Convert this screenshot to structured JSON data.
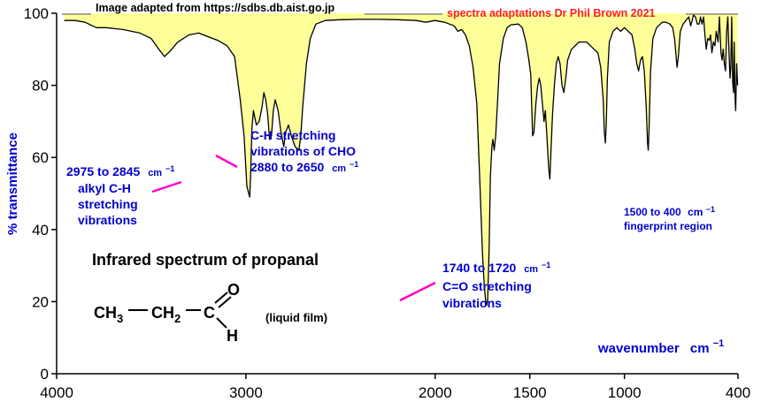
{
  "credit": {
    "source": "Image adapted from https://sdbs.db.aist.go.jp",
    "adaptation": "spectra adaptations Dr Phil Brown 2021"
  },
  "title": "Infrared spectrum of propanal",
  "sample_note": "(liquid film)",
  "molecule": {
    "ch3": "CH",
    "ch3_sub": "3",
    "ch2": "CH",
    "ch2_sub": "2",
    "c": "C",
    "o": "O",
    "h": "H"
  },
  "annotations": {
    "alkyl_range": "2975 to 2845",
    "alkyl_unit": "cm",
    "alkyl_unit_exp": "−1",
    "alkyl_line1": "alkyl C-H",
    "alkyl_line2": "stretching",
    "alkyl_line3": "vibrations",
    "cho_line1": "C-H stretching",
    "cho_line2": "vibrations of CHO",
    "cho_range": "2880 to 2650",
    "cho_unit": "cm",
    "cho_unit_exp": "−1",
    "co_range": "1740 to 1720",
    "co_unit": "cm",
    "co_unit_exp": "−1",
    "co_line1": "C=O stretching",
    "co_line2": "vibrations",
    "fp_range": "1500 to 400",
    "fp_unit": "cm",
    "fp_unit_exp": "−1",
    "fp_line2": "fingerprint region"
  },
  "colors": {
    "fill": "#ffff99",
    "trace": "#000000",
    "blue_text": "#0000cc",
    "pink_text": "#ff2020",
    "annotation_line": "#ff00cc"
  },
  "chart_data": {
    "type": "line",
    "xlabel": "wavenumber",
    "xlabel_unit": "cm",
    "xlabel_unit_exp": "−1",
    "ylabel": "% transmittance",
    "xlim": [
      4000,
      400
    ],
    "ylim": [
      0,
      100
    ],
    "x_reversed": true,
    "xticks": [
      4000,
      3000,
      2000,
      1500,
      1000,
      400
    ],
    "xtick_labels": [
      "4000",
      "3000",
      "2000",
      "1500",
      "1000",
      "400"
    ],
    "yticks": [
      0,
      20,
      40,
      60,
      80,
      100
    ],
    "ytick_labels": [
      "0",
      "20",
      "40",
      "60",
      "80",
      "100"
    ],
    "fill_under_curve_to": 100,
    "series": [
      {
        "points": [
          [
            3960,
            98
          ],
          [
            3900,
            98
          ],
          [
            3850,
            97.5
          ],
          [
            3790,
            96
          ],
          [
            3740,
            96
          ],
          [
            3650,
            95.5
          ],
          [
            3560,
            94.5
          ],
          [
            3500,
            93
          ],
          [
            3460,
            90
          ],
          [
            3430,
            88
          ],
          [
            3400,
            89.5
          ],
          [
            3360,
            92
          ],
          [
            3300,
            94
          ],
          [
            3250,
            94.5
          ],
          [
            3200,
            93.5
          ],
          [
            3150,
            92.5
          ],
          [
            3100,
            91
          ],
          [
            3060,
            88
          ],
          [
            3030,
            76
          ],
          [
            3010,
            66
          ],
          [
            2995,
            52
          ],
          [
            2980,
            49
          ],
          [
            2975,
            55
          ],
          [
            2968,
            68
          ],
          [
            2960,
            73
          ],
          [
            2945,
            69
          ],
          [
            2930,
            70
          ],
          [
            2915,
            74
          ],
          [
            2905,
            78
          ],
          [
            2895,
            76
          ],
          [
            2885,
            72
          ],
          [
            2875,
            65
          ],
          [
            2865,
            66
          ],
          [
            2855,
            73
          ],
          [
            2845,
            76
          ],
          [
            2830,
            73
          ],
          [
            2815,
            67
          ],
          [
            2800,
            63
          ],
          [
            2790,
            67
          ],
          [
            2775,
            69
          ],
          [
            2760,
            66
          ],
          [
            2740,
            63
          ],
          [
            2720,
            62
          ],
          [
            2710,
            66
          ],
          [
            2700,
            74
          ],
          [
            2680,
            86
          ],
          [
            2660,
            93
          ],
          [
            2630,
            97
          ],
          [
            2580,
            98
          ],
          [
            2500,
            98.2
          ],
          [
            2400,
            98.3
          ],
          [
            2300,
            98.3
          ],
          [
            2200,
            98.2
          ],
          [
            2100,
            98
          ],
          [
            2050,
            97.5
          ],
          [
            2000,
            98
          ],
          [
            1950,
            97.5
          ],
          [
            1900,
            96.5
          ],
          [
            1880,
            95
          ],
          [
            1860,
            95.5
          ],
          [
            1840,
            94
          ],
          [
            1820,
            91
          ],
          [
            1800,
            85
          ],
          [
            1780,
            75
          ],
          [
            1765,
            55
          ],
          [
            1750,
            33
          ],
          [
            1740,
            24
          ],
          [
            1733,
            20
          ],
          [
            1728,
            19
          ],
          [
            1722,
            21
          ],
          [
            1715,
            34
          ],
          [
            1708,
            55
          ],
          [
            1700,
            63
          ],
          [
            1695,
            65
          ],
          [
            1688,
            62
          ],
          [
            1680,
            66
          ],
          [
            1670,
            76
          ],
          [
            1660,
            86
          ],
          [
            1640,
            93
          ],
          [
            1620,
            96
          ],
          [
            1600,
            96.8
          ],
          [
            1560,
            97
          ],
          [
            1540,
            96
          ],
          [
            1520,
            92
          ],
          [
            1505,
            87
          ],
          [
            1495,
            83
          ],
          [
            1485,
            66
          ],
          [
            1478,
            67
          ],
          [
            1468,
            75
          ],
          [
            1458,
            80
          ],
          [
            1450,
            82
          ],
          [
            1442,
            80
          ],
          [
            1432,
            74
          ],
          [
            1425,
            70
          ],
          [
            1418,
            73
          ],
          [
            1410,
            66
          ],
          [
            1400,
            57
          ],
          [
            1394,
            54
          ],
          [
            1388,
            62
          ],
          [
            1380,
            72
          ],
          [
            1370,
            80
          ],
          [
            1360,
            86
          ],
          [
            1350,
            88
          ],
          [
            1340,
            86
          ],
          [
            1330,
            80
          ],
          [
            1320,
            78
          ],
          [
            1310,
            82
          ],
          [
            1300,
            87
          ],
          [
            1280,
            90
          ],
          [
            1260,
            91
          ],
          [
            1240,
            92
          ],
          [
            1220,
            92
          ],
          [
            1200,
            92
          ],
          [
            1180,
            91
          ],
          [
            1160,
            90
          ],
          [
            1140,
            89
          ],
          [
            1125,
            85
          ],
          [
            1112,
            76
          ],
          [
            1106,
            67
          ],
          [
            1101,
            64
          ],
          [
            1096,
            69
          ],
          [
            1090,
            82
          ],
          [
            1080,
            92
          ],
          [
            1060,
            95
          ],
          [
            1040,
            96
          ],
          [
            1020,
            95
          ],
          [
            1000,
            96
          ],
          [
            980,
            95
          ],
          [
            960,
            94
          ],
          [
            945,
            90
          ],
          [
            935,
            86
          ],
          [
            925,
            84
          ],
          [
            915,
            87
          ],
          [
            905,
            88
          ],
          [
            895,
            84
          ],
          [
            885,
            74
          ],
          [
            878,
            64
          ],
          [
            874,
            62
          ],
          [
            870,
            68
          ],
          [
            862,
            84
          ],
          [
            850,
            93
          ],
          [
            830,
            96
          ],
          [
            800,
            97.5
          ],
          [
            780,
            97.5
          ],
          [
            760,
            97
          ],
          [
            745,
            96
          ],
          [
            735,
            93
          ],
          [
            727,
            88
          ],
          [
            722,
            85
          ],
          [
            715,
            88
          ],
          [
            705,
            95
          ],
          [
            690,
            97
          ],
          [
            675,
            98
          ],
          [
            660,
            99
          ],
          [
            650,
            96.5
          ],
          [
            642,
            98
          ],
          [
            635,
            99.5
          ],
          [
            625,
            99
          ],
          [
            615,
            97
          ],
          [
            605,
            97
          ],
          [
            598,
            99
          ],
          [
            590,
            97
          ],
          [
            582,
            99
          ],
          [
            575,
            94
          ],
          [
            568,
            90
          ],
          [
            560,
            93
          ],
          [
            552,
            92.5
          ],
          [
            545,
            94
          ],
          [
            538,
            89
          ],
          [
            530,
            92
          ],
          [
            522,
            91
          ],
          [
            515,
            95
          ],
          [
            505,
            92
          ],
          [
            498,
            99
          ],
          [
            490,
            89
          ],
          [
            484,
            87
          ],
          [
            478,
            90
          ],
          [
            472,
            86
          ],
          [
            466,
            84
          ],
          [
            460,
            95
          ],
          [
            454,
            99
          ],
          [
            448,
            90
          ],
          [
            442,
            82
          ],
          [
            438,
            85
          ],
          [
            433,
            99
          ],
          [
            428,
            81
          ],
          [
            424,
            78
          ],
          [
            420,
            92
          ],
          [
            416,
            77
          ],
          [
            412,
            73
          ],
          [
            407,
            86
          ],
          [
            402,
            80
          ]
        ]
      }
    ]
  }
}
